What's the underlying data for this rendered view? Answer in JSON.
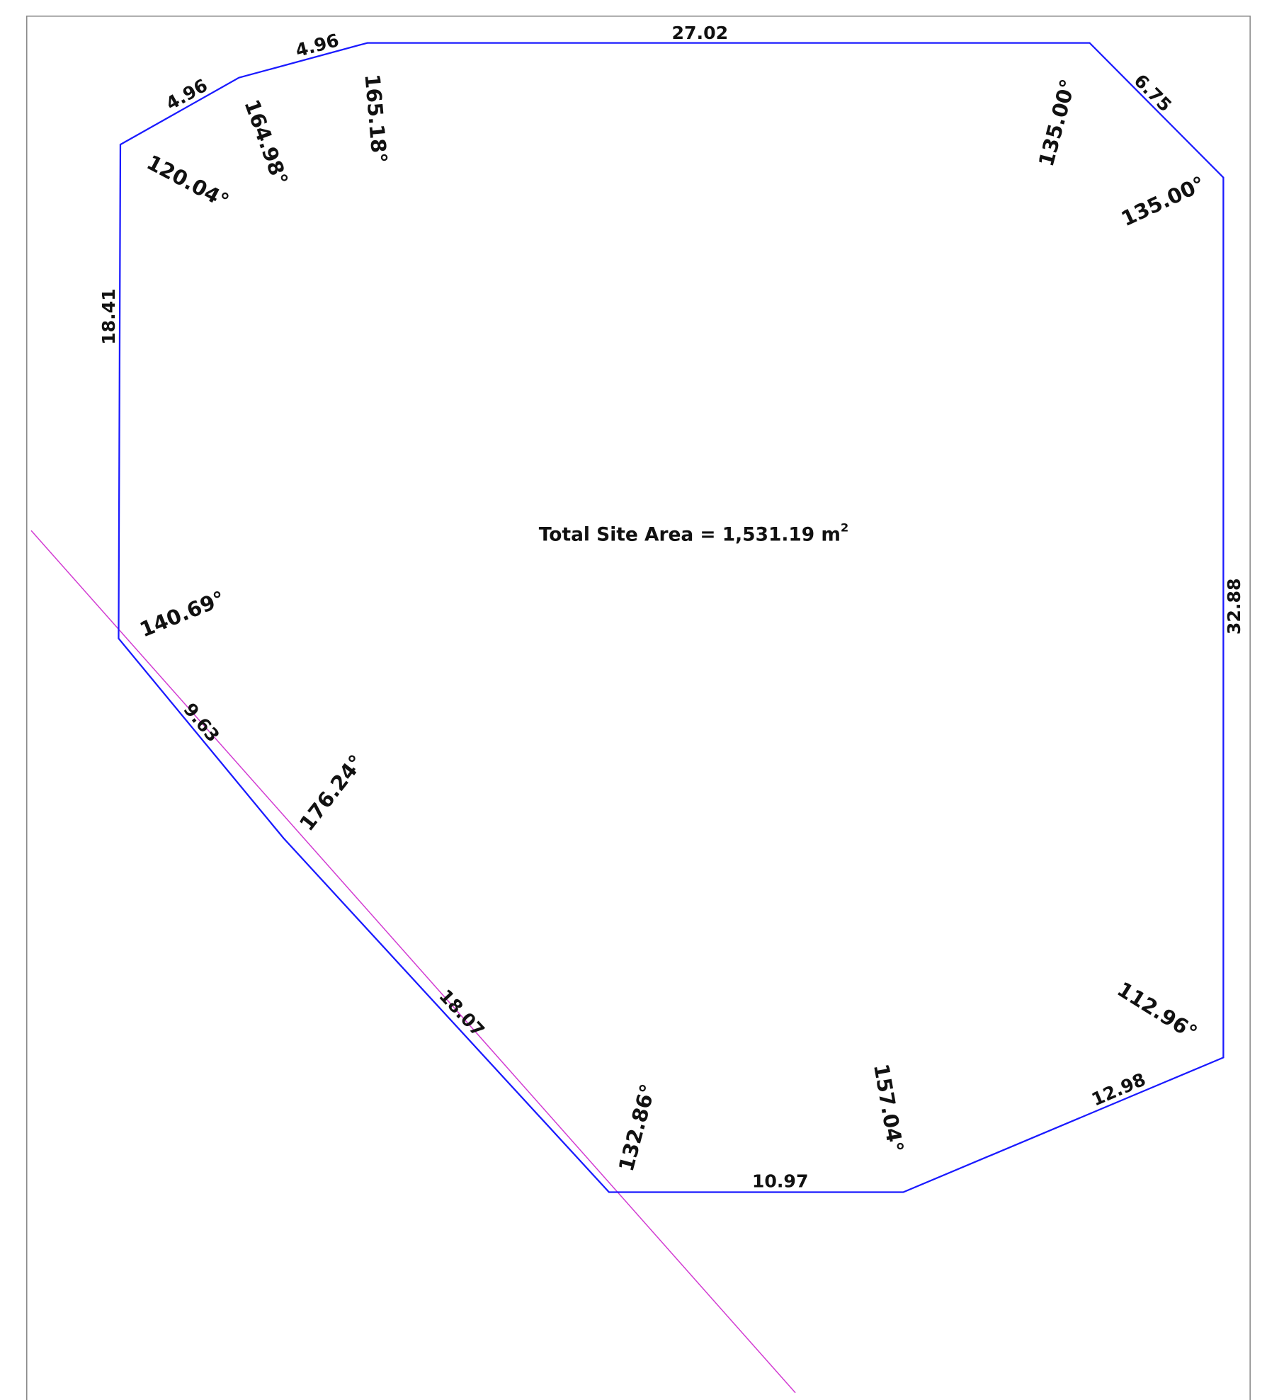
{
  "area": {
    "label": "Total Site Area = 1,531.19 m",
    "superscript": "2"
  },
  "edges": [
    "4.96",
    "4.96",
    "27.02",
    "6.75",
    "32.88",
    "12.98",
    "10.97",
    "18.07",
    "9.63",
    "18.41"
  ],
  "angles": [
    "120.04°",
    "164.98°",
    "165.18°",
    "135.00°",
    "135.00°",
    "112.96°",
    "157.04°",
    "132.86°",
    "176.24°",
    "140.69°"
  ]
}
